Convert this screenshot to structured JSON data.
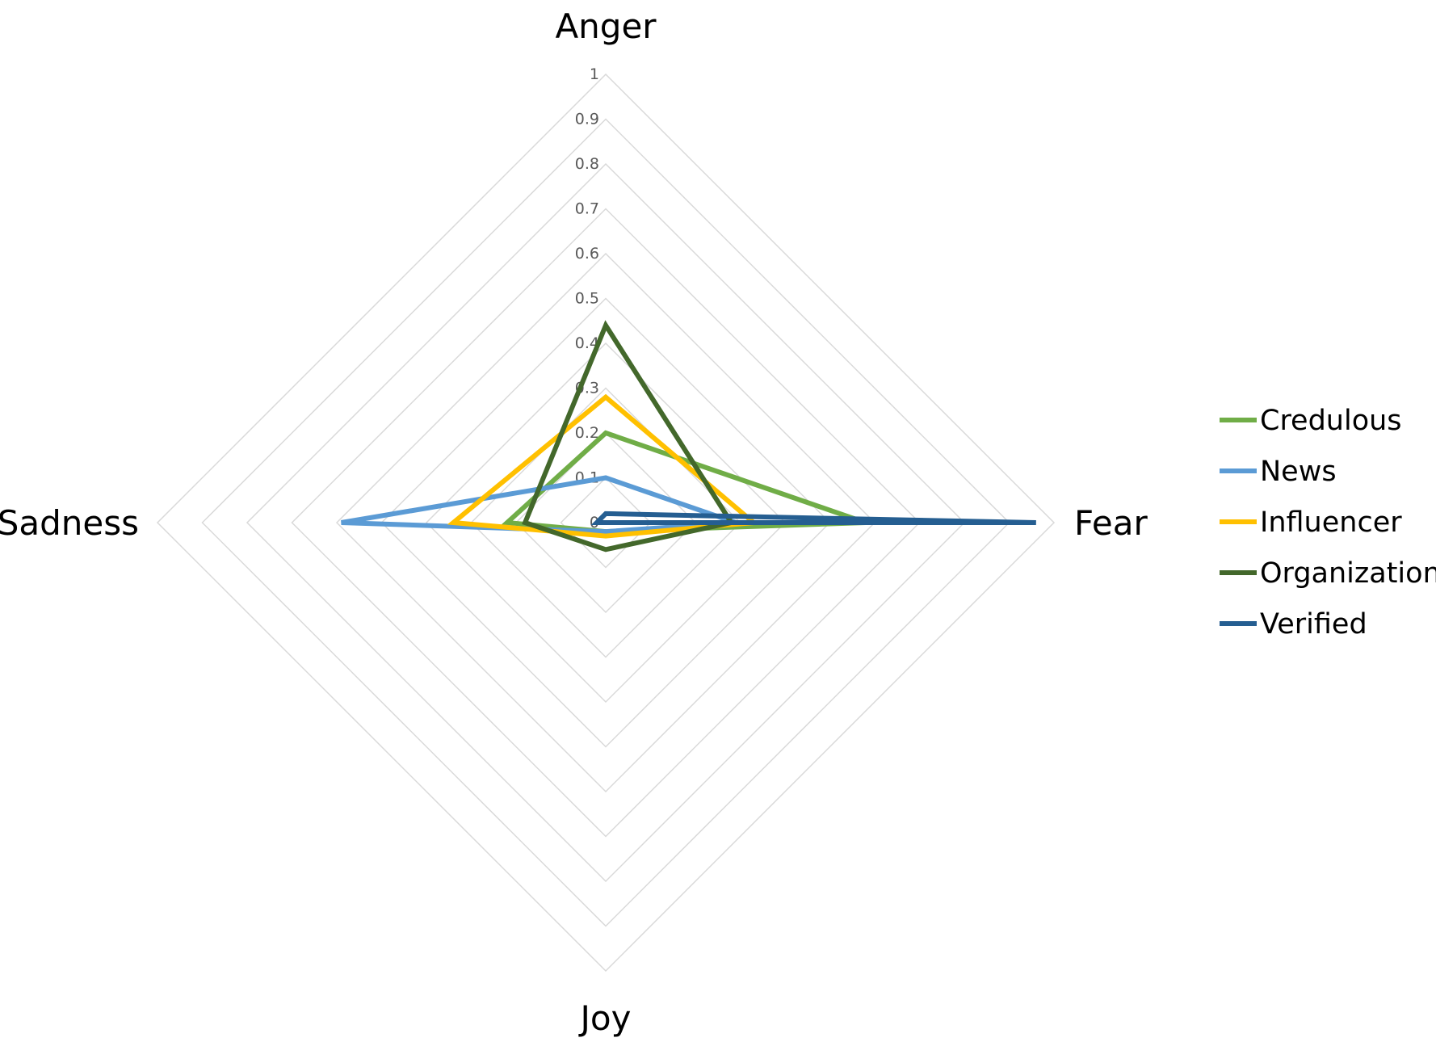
{
  "chart_data": {
    "type": "radar",
    "axes": [
      "Anger",
      "Fear",
      "Joy",
      "Sadness"
    ],
    "range": [
      0,
      1
    ],
    "ticks": [
      "0",
      "0.1",
      "0.2",
      "0.3",
      "0.4",
      "0.5",
      "0.6",
      "0.7",
      "0.8",
      "0.9",
      "1"
    ],
    "grid": true,
    "legend_position": "right",
    "series": [
      {
        "name": "Credulous",
        "color": "#70AD47",
        "values": [
          0.2,
          0.58,
          0.02,
          0.22
        ]
      },
      {
        "name": "News",
        "color": "#5B9BD5",
        "values": [
          0.1,
          0.29,
          0.02,
          0.59
        ]
      },
      {
        "name": "Influencer",
        "color": "#FFC000",
        "values": [
          0.28,
          0.33,
          0.03,
          0.34
        ]
      },
      {
        "name": "Organization",
        "color": "#43682B",
        "values": [
          0.44,
          0.28,
          0.06,
          0.18
        ]
      },
      {
        "name": "Verified",
        "color": "#255E91",
        "values": [
          0.02,
          0.96,
          0.0,
          0.02
        ]
      }
    ]
  }
}
